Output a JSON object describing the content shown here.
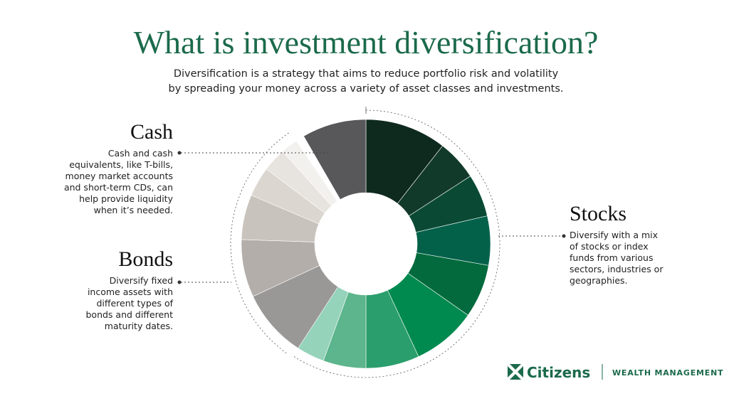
{
  "header": {
    "title": "What is investment diversification?",
    "subtitle_lines": [
      "Diversification is a strategy that aims to reduce portfolio risk and volatility",
      "by spreading your money across a variety of asset classes and investments."
    ]
  },
  "sections": [
    {
      "heading": "Cash",
      "lines": [
        "Cash and cash",
        "equivalents, like T-bills,",
        "money market accounts",
        "and short-term CDs, can",
        "help provide liquidity",
        "when it’s needed."
      ]
    },
    {
      "heading": "Stocks",
      "lines": [
        "Diversify with a mix",
        "of stocks or index",
        "funds from various",
        "sectors, industries or",
        "geographies."
      ]
    },
    {
      "heading": "Bonds",
      "lines": [
        "Diversify fixed",
        "income assets with",
        "different types of",
        "bonds and different",
        "maturity dates."
      ]
    }
  ],
  "logo": {
    "brand": "Citizens",
    "division": "WEALTH MANAGEMENT"
  }
}
